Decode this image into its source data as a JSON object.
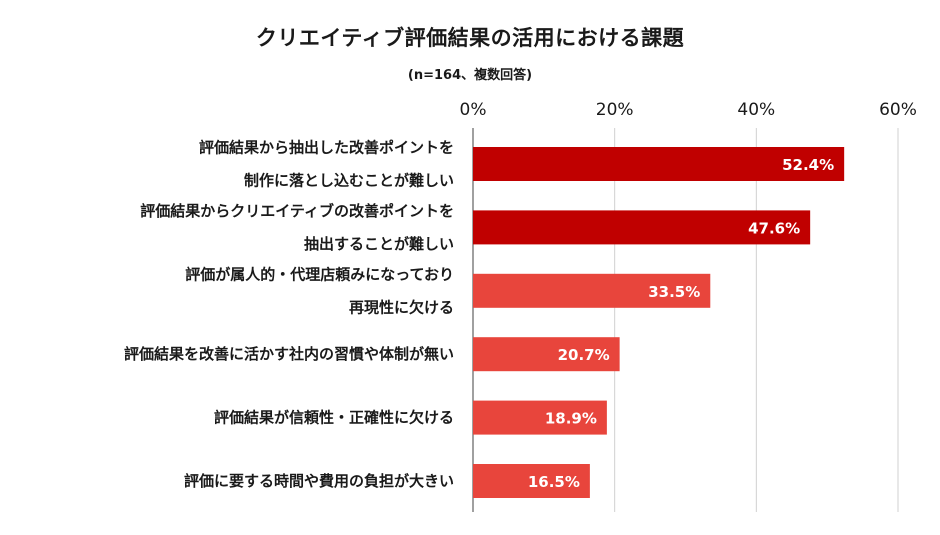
{
  "header": {
    "title": "クリエイティブ評価結果の活用における課題",
    "subtitle": "(n=164、複数回答)"
  },
  "colors": {
    "bar_dark": "#c00000",
    "bar_light": "#e8453c",
    "grid": "#d0d0d0",
    "axis": "#808080",
    "label_text": "#1a1a1a",
    "value_text": "#ffffff"
  },
  "chart_data": {
    "type": "bar",
    "orientation": "horizontal",
    "title": "クリエイティブ評価結果の活用における課題",
    "subtitle": "(n=164、複数回答)",
    "xlim": [
      0,
      60
    ],
    "x_ticks": [
      0,
      20,
      40,
      60
    ],
    "x_tick_labels": [
      "0%",
      "20%",
      "40%",
      "60%"
    ],
    "grid": "vertical",
    "categories": [
      [
        "評価結果から抽出した改善ポイントを",
        "制作に落とし込むことが難しい"
      ],
      [
        "評価結果からクリエイティブの改善ポイントを",
        "抽出することが難しい"
      ],
      [
        "評価が属人的・代理店頼みになっており",
        "再現性に欠ける"
      ],
      [
        "評価結果を改善に活かす社内の習慣や体制が無い"
      ],
      [
        "評価結果が信頼性・正確性に欠ける"
      ],
      [
        "評価に要する時間や費用の負担が大きい"
      ]
    ],
    "values": [
      52.4,
      47.6,
      33.5,
      20.7,
      18.9,
      16.5
    ],
    "value_labels": [
      "52.4%",
      "47.6%",
      "33.5%",
      "20.7%",
      "18.9%",
      "16.5%"
    ],
    "bar_color_keys": [
      "bar_dark",
      "bar_dark",
      "bar_light",
      "bar_light",
      "bar_light",
      "bar_light"
    ]
  }
}
